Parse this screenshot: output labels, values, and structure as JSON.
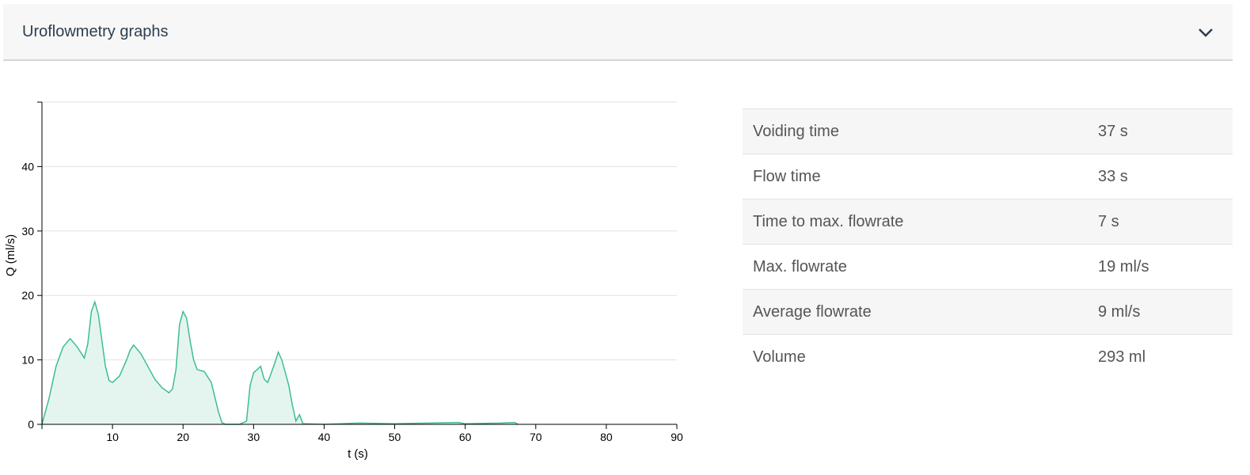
{
  "panel": {
    "title": "Uroflowmetry graphs",
    "toggle_icon": "chevron-down-icon"
  },
  "colors": {
    "line": "#3dbd95",
    "fill": "#e4f5ef",
    "grid": "#e3e3e3",
    "axis": "#000000"
  },
  "chart_data": {
    "type": "area",
    "xlabel": "t (s)",
    "ylabel": "Q (ml/s)",
    "xlim": [
      0,
      90
    ],
    "ylim": [
      0,
      50
    ],
    "xticks": [
      10,
      20,
      30,
      40,
      50,
      60,
      70,
      80,
      90
    ],
    "yticks": [
      0,
      10,
      20,
      30,
      40
    ],
    "grid": true,
    "series": [
      {
        "x": [
          0,
          1,
          2,
          3,
          4,
          5,
          6,
          6.5,
          7,
          7.5,
          8,
          8.5,
          9,
          9.5,
          10,
          11,
          12,
          12.5,
          13,
          14,
          15,
          16,
          17,
          18,
          18.5,
          19,
          19.5,
          20,
          20.5,
          21,
          21.5,
          22,
          23,
          24,
          25,
          25.5,
          26,
          27,
          28,
          29,
          29.5,
          30,
          31,
          31.5,
          32,
          33,
          33.5,
          34,
          35,
          35.5,
          36,
          36.5,
          37,
          40,
          45,
          50,
          55,
          59,
          60,
          65,
          67,
          67.5
        ],
        "y": [
          0,
          4,
          9,
          12,
          13.3,
          12,
          10.3,
          12.5,
          17.5,
          19,
          17,
          13,
          9,
          6.8,
          6.5,
          7.5,
          10,
          11.5,
          12.3,
          11,
          9,
          7,
          5.7,
          4.9,
          5.5,
          8.5,
          15.5,
          17.5,
          16.5,
          13,
          10,
          8.5,
          8.2,
          6.5,
          2,
          0.3,
          0,
          0,
          0,
          0.5,
          6,
          8,
          9,
          7,
          6.5,
          9.5,
          11.2,
          10,
          6,
          3,
          0.5,
          1.5,
          0.1,
          0,
          0.2,
          0.1,
          0.2,
          0.3,
          0.1,
          0.2,
          0.3,
          0
        ]
      }
    ]
  },
  "stats": [
    {
      "label": "Voiding time",
      "value": "37 s"
    },
    {
      "label": "Flow time",
      "value": "33 s"
    },
    {
      "label": "Time to max. flowrate",
      "value": "7 s"
    },
    {
      "label": "Max. flowrate",
      "value": "19 ml/s"
    },
    {
      "label": "Average flowrate",
      "value": "9 ml/s"
    },
    {
      "label": "Volume",
      "value": "293 ml"
    }
  ]
}
